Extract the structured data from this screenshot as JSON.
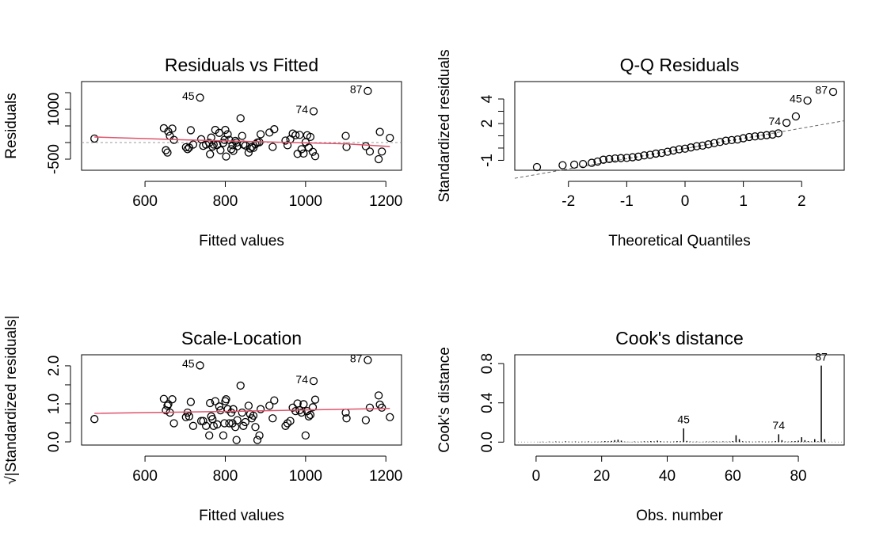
{
  "chart_data": [
    {
      "type": "scatter",
      "title": "Residuals vs Fitted",
      "xlabel": "Fitted values",
      "ylabel": "Residuals",
      "x": [
        474,
        647,
        652,
        656,
        658,
        662,
        668,
        672,
        702,
        706,
        710,
        714,
        720,
        737,
        740,
        745,
        752,
        760,
        762,
        765,
        768,
        771,
        775,
        780,
        785,
        788,
        795,
        798,
        800,
        802,
        806,
        810,
        815,
        818,
        820,
        825,
        828,
        830,
        838,
        842,
        845,
        850,
        858,
        862,
        866,
        870,
        875,
        880,
        885,
        888,
        910,
        918,
        922,
        950,
        955,
        962,
        968,
        975,
        980,
        985,
        990,
        995,
        1000,
        1004,
        1008,
        1012,
        1018,
        1020,
        1024,
        1100,
        1102,
        1150,
        1155,
        1160,
        1182,
        1185,
        1190,
        1210
      ],
      "values": [
        120,
        430,
        -230,
        -300,
        330,
        200,
        420,
        80,
        -140,
        -200,
        -150,
        370,
        -60,
        1350,
        100,
        -100,
        -60,
        -10,
        -350,
        150,
        -120,
        -60,
        380,
        -70,
        290,
        -230,
        -10,
        80,
        380,
        -420,
        250,
        80,
        -200,
        -80,
        -250,
        50,
        0,
        -110,
        730,
        200,
        -60,
        -90,
        -300,
        -180,
        -130,
        -160,
        -50,
        0,
        10,
        250,
        300,
        -130,
        400,
        60,
        -80,
        100,
        270,
        220,
        -340,
        230,
        -200,
        -330,
        10,
        220,
        -150,
        170,
        -280,
        940,
        -410,
        200,
        -130,
        -110,
        1550,
        -270,
        -500,
        320,
        -270,
        140
      ],
      "smooth": {
        "color": "#df536b",
        "x": [
          474,
          700,
          900,
          1100,
          1210
        ],
        "values": [
          167,
          80,
          20,
          -40,
          -120
        ]
      },
      "hline": 0,
      "annotations": [
        {
          "text": "45",
          "x": 737,
          "y": 1350
        },
        {
          "text": "74",
          "x": 1020,
          "y": 940
        },
        {
          "text": "87",
          "x": 1155,
          "y": 1550
        }
      ],
      "xlim": [
        442,
        1239
      ],
      "ylim": [
        -833,
        1833
      ],
      "xticks": [
        600,
        800,
        1000,
        1200
      ],
      "yticks": [
        -500,
        1000
      ],
      "yticks_minor": [
        0,
        500,
        1500
      ]
    },
    {
      "type": "scatter",
      "title": "Q-Q Residuals",
      "xlabel": "Theoretical Quantiles",
      "ylabel": "Standardized residuals",
      "x": [
        -2.54,
        -2.1,
        -1.9,
        -1.75,
        -1.6,
        -1.5,
        -1.4,
        -1.3,
        -1.2,
        -1.1,
        -1.0,
        -0.9,
        -0.8,
        -0.7,
        -0.6,
        -0.5,
        -0.4,
        -0.3,
        -0.2,
        -0.1,
        0,
        0.1,
        0.2,
        0.3,
        0.4,
        0.5,
        0.6,
        0.7,
        0.8,
        0.9,
        1.0,
        1.1,
        1.2,
        1.3,
        1.4,
        1.5,
        1.6,
        1.74,
        1.9,
        2.1,
        2.54
      ],
      "values": [
        -1.55,
        -1.4,
        -1.35,
        -1.3,
        -1.2,
        -1.1,
        -0.95,
        -0.9,
        -0.85,
        -0.82,
        -0.8,
        -0.75,
        -0.7,
        -0.6,
        -0.55,
        -0.45,
        -0.4,
        -0.3,
        -0.2,
        -0.1,
        -0.05,
        0.05,
        0.15,
        0.2,
        0.3,
        0.4,
        0.5,
        0.6,
        0.65,
        0.7,
        0.8,
        0.9,
        0.95,
        1.0,
        1.05,
        1.1,
        1.2,
        2.06,
        2.58,
        3.87,
        4.58
      ],
      "refline": {
        "intercept": -0.04,
        "slope": 0.83
      },
      "annotations": [
        {
          "text": "74",
          "x": 1.74,
          "y": 2.06
        },
        {
          "text": "45",
          "x": 2.1,
          "y": 3.87
        },
        {
          "text": "87",
          "x": 2.54,
          "y": 4.58
        }
      ],
      "xlim": [
        -2.92,
        2.73
      ],
      "ylim": [
        -1.81,
        5.42
      ],
      "xticks": [
        -2,
        -1,
        0,
        1,
        2
      ],
      "yticks": [
        -1,
        2,
        4
      ],
      "yticks_minor": [
        0,
        1,
        3
      ]
    },
    {
      "type": "scatter",
      "title": "Scale-Location",
      "xlabel": "Fitted values",
      "ylabel": "√|Standardized residuals|",
      "x": [
        474,
        647,
        652,
        656,
        658,
        662,
        668,
        672,
        702,
        706,
        710,
        714,
        720,
        737,
        740,
        745,
        752,
        760,
        762,
        765,
        768,
        771,
        775,
        780,
        785,
        788,
        795,
        798,
        800,
        802,
        806,
        810,
        815,
        818,
        820,
        825,
        828,
        830,
        838,
        842,
        845,
        850,
        858,
        862,
        866,
        870,
        875,
        880,
        885,
        888,
        910,
        918,
        922,
        950,
        955,
        962,
        968,
        975,
        980,
        985,
        990,
        995,
        1000,
        1004,
        1008,
        1012,
        1018,
        1020,
        1024,
        1100,
        1102,
        1150,
        1155,
        1160,
        1182,
        1185,
        1190,
        1210
      ],
      "values": [
        0.6,
        1.13,
        0.83,
        0.95,
        0.99,
        0.77,
        1.12,
        0.49,
        0.65,
        0.77,
        0.67,
        1.05,
        0.42,
        2.01,
        0.55,
        0.55,
        0.42,
        0.17,
        1.02,
        0.67,
        0.6,
        0.42,
        1.07,
        0.46,
        0.93,
        0.83,
        0.17,
        0.49,
        1.07,
        1.12,
        0.86,
        0.49,
        0.77,
        0.49,
        0.86,
        0.39,
        0.05,
        0.57,
        1.48,
        0.77,
        0.42,
        0.52,
        0.95,
        0.73,
        0.62,
        0.69,
        0.39,
        0.05,
        0.17,
        0.86,
        0.95,
        0.62,
        1.09,
        0.42,
        0.49,
        0.55,
        0.9,
        0.81,
        1.01,
        0.83,
        0.77,
        0.99,
        0.17,
        0.81,
        0.67,
        0.71,
        0.91,
        1.6,
        1.11,
        0.77,
        0.62,
        0.57,
        2.15,
        0.9,
        1.22,
        0.98,
        0.9,
        0.65
      ],
      "smooth": {
        "color": "#df536b",
        "x": [
          474,
          800,
          1210
        ],
        "values": [
          0.75,
          0.8,
          0.88
        ]
      },
      "annotations": [
        {
          "text": "45",
          "x": 737,
          "y": 2.01
        },
        {
          "text": "74",
          "x": 1020,
          "y": 1.6
        },
        {
          "text": "87",
          "x": 1155,
          "y": 2.15
        }
      ],
      "xlim": [
        442,
        1239
      ],
      "ylim": [
        -0.083,
        2.29
      ],
      "xticks": [
        600,
        800,
        1000,
        1200
      ],
      "yticks": [
        {
          "value": 0,
          "label": "0.0"
        },
        {
          "value": 1,
          "label": "1.0"
        },
        {
          "value": 2,
          "label": "2.0"
        }
      ],
      "yticks_minor": [
        0.5,
        1.5
      ]
    },
    {
      "type": "bar",
      "title": "Cook's distance",
      "xlabel": "Obs. number",
      "ylabel": "Cook's distance",
      "x": [
        1,
        2,
        3,
        4,
        5,
        6,
        7,
        8,
        9,
        10,
        11,
        12,
        13,
        14,
        15,
        16,
        17,
        18,
        19,
        20,
        21,
        22,
        23,
        24,
        25,
        26,
        27,
        28,
        29,
        30,
        31,
        32,
        33,
        34,
        35,
        36,
        37,
        38,
        39,
        40,
        41,
        42,
        43,
        44,
        45,
        46,
        47,
        48,
        49,
        50,
        51,
        52,
        53,
        54,
        55,
        56,
        57,
        58,
        59,
        60,
        61,
        62,
        63,
        64,
        65,
        66,
        67,
        68,
        69,
        70,
        71,
        72,
        73,
        74,
        75,
        76,
        77,
        78,
        79,
        80,
        81,
        82,
        83,
        84,
        85,
        86,
        87,
        88
      ],
      "values": [
        0.003,
        0.004,
        0.002,
        0.005,
        0.003,
        0.006,
        0.004,
        0.003,
        0.008,
        0.005,
        0.004,
        0.006,
        0.003,
        0.005,
        0.004,
        0.007,
        0.003,
        0.005,
        0.004,
        0.006,
        0.01,
        0.008,
        0.012,
        0.02,
        0.025,
        0.015,
        0.005,
        0.004,
        0.003,
        0.006,
        0.004,
        0.005,
        0.008,
        0.006,
        0.01,
        0.007,
        0.015,
        0.009,
        0.005,
        0.006,
        0.004,
        0.006,
        0.01,
        0.008,
        0.14,
        0.012,
        0.006,
        0.004,
        0.005,
        0.003,
        0.004,
        0.006,
        0.005,
        0.008,
        0.006,
        0.004,
        0.007,
        0.005,
        0.006,
        0.01,
        0.07,
        0.03,
        0.008,
        0.005,
        0.006,
        0.004,
        0.005,
        0.007,
        0.006,
        0.004,
        0.005,
        0.006,
        0.01,
        0.08,
        0.02,
        0.006,
        0.005,
        0.008,
        0.01,
        0.015,
        0.05,
        0.02,
        0.01,
        0.006,
        0.03,
        0.008,
        0.78,
        0.03
      ],
      "hline": 0,
      "annotations": [
        {
          "text": "45",
          "x": 45,
          "y": 0.14
        },
        {
          "text": "74",
          "x": 74,
          "y": 0.08
        },
        {
          "text": "87",
          "x": 87,
          "y": 0.78
        }
      ],
      "xlim": [
        -6.5,
        94
      ],
      "ylim": [
        -0.03,
        0.89
      ],
      "xticks": [
        0,
        20,
        40,
        60,
        80
      ],
      "yticks": [
        {
          "value": 0,
          "label": "0.0"
        },
        {
          "value": 0.4,
          "label": "0.4"
        },
        {
          "value": 0.8,
          "label": "0.8"
        }
      ]
    }
  ]
}
